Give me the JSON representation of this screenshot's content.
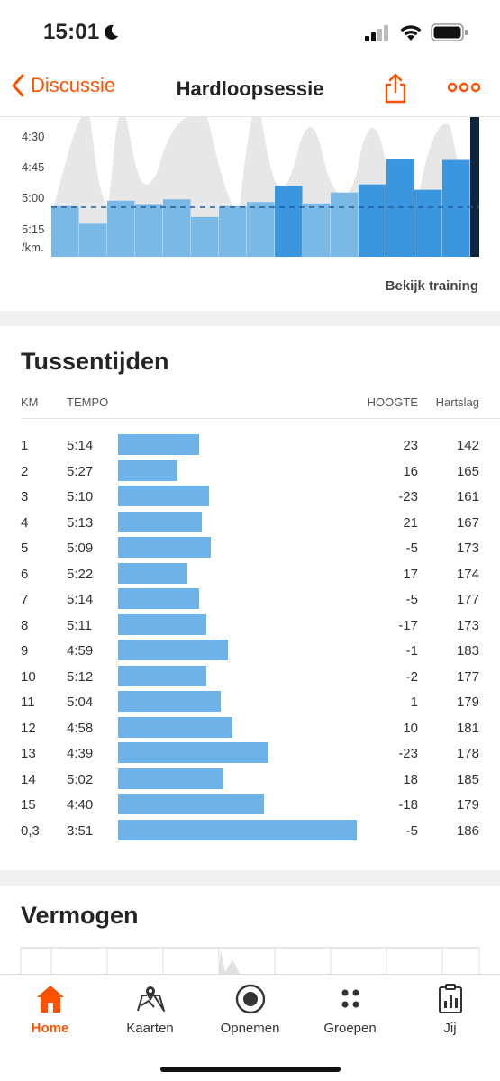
{
  "status": {
    "time": "15:01"
  },
  "nav": {
    "back_label": "Discussie",
    "title": "Hardloopsessie"
  },
  "pace_chart": {
    "y_ticks": [
      "4:30",
      "4:45",
      "5:00",
      "5:15"
    ],
    "unit": "/km.",
    "link": "Bekijk training"
  },
  "chart_data": {
    "type": "bar",
    "categories": [
      "1",
      "2",
      "3",
      "4",
      "5",
      "6",
      "7",
      "8",
      "9",
      "10",
      "11",
      "12",
      "13",
      "14",
      "15",
      "0,3"
    ],
    "values_sec_per_km": [
      314,
      327,
      310,
      313,
      309,
      322,
      314,
      311,
      299,
      312,
      304,
      298,
      279,
      302,
      280,
      231
    ],
    "ylim": [
      "5:25",
      "4:20"
    ],
    "average_line": "5:03",
    "y_tick_labels": [
      "4:30",
      "4:45",
      "5:00",
      "5:15"
    ],
    "y_unit": "/km."
  },
  "splits": {
    "title": "Tussentijden",
    "headers": {
      "km": "KM",
      "tempo": "TEMPO",
      "hoogte": "HOOGTE",
      "hartslag": "Hartslag"
    },
    "bar_color": "#6db3ea",
    "rows": [
      {
        "km": "1",
        "tempo": "5:14",
        "bar": 0.34,
        "hoogte": "23",
        "hr": "142"
      },
      {
        "km": "2",
        "tempo": "5:27",
        "bar": 0.25,
        "hoogte": "16",
        "hr": "165"
      },
      {
        "km": "3",
        "tempo": "5:10",
        "bar": 0.38,
        "hoogte": "-23",
        "hr": "161"
      },
      {
        "km": "4",
        "tempo": "5:13",
        "bar": 0.35,
        "hoogte": "21",
        "hr": "167"
      },
      {
        "km": "5",
        "tempo": "5:09",
        "bar": 0.39,
        "hoogte": "-5",
        "hr": "173"
      },
      {
        "km": "6",
        "tempo": "5:22",
        "bar": 0.29,
        "hoogte": "17",
        "hr": "174"
      },
      {
        "km": "7",
        "tempo": "5:14",
        "bar": 0.34,
        "hoogte": "-5",
        "hr": "177"
      },
      {
        "km": "8",
        "tempo": "5:11",
        "bar": 0.37,
        "hoogte": "-17",
        "hr": "173"
      },
      {
        "km": "9",
        "tempo": "4:59",
        "bar": 0.46,
        "hoogte": "-1",
        "hr": "183"
      },
      {
        "km": "10",
        "tempo": "5:12",
        "bar": 0.37,
        "hoogte": "-2",
        "hr": "177"
      },
      {
        "km": "11",
        "tempo": "5:04",
        "bar": 0.43,
        "hoogte": "1",
        "hr": "179"
      },
      {
        "km": "12",
        "tempo": "4:58",
        "bar": 0.48,
        "hoogte": "10",
        "hr": "181"
      },
      {
        "km": "13",
        "tempo": "4:39",
        "bar": 0.63,
        "hoogte": "-23",
        "hr": "178"
      },
      {
        "km": "14",
        "tempo": "5:02",
        "bar": 0.44,
        "hoogte": "18",
        "hr": "185"
      },
      {
        "km": "15",
        "tempo": "4:40",
        "bar": 0.61,
        "hoogte": "-18",
        "hr": "179"
      },
      {
        "km": "0,3",
        "tempo": "3:51",
        "bar": 1.0,
        "hoogte": "-5",
        "hr": "186"
      }
    ]
  },
  "power": {
    "title": "Vermogen"
  },
  "tabs": [
    {
      "label": "Home",
      "icon": "home-icon",
      "active": true
    },
    {
      "label": "Kaarten",
      "icon": "map-icon",
      "active": false
    },
    {
      "label": "Opnemen",
      "icon": "record-icon",
      "active": false
    },
    {
      "label": "Groepen",
      "icon": "groups-icon",
      "active": false
    },
    {
      "label": "Jij",
      "icon": "profile-icon",
      "active": false
    }
  ],
  "colors": {
    "accent": "#fc5200",
    "bar_light": "#7ab8e6",
    "bar_dark": "#3a96df",
    "bar_current": "#0e2540"
  }
}
